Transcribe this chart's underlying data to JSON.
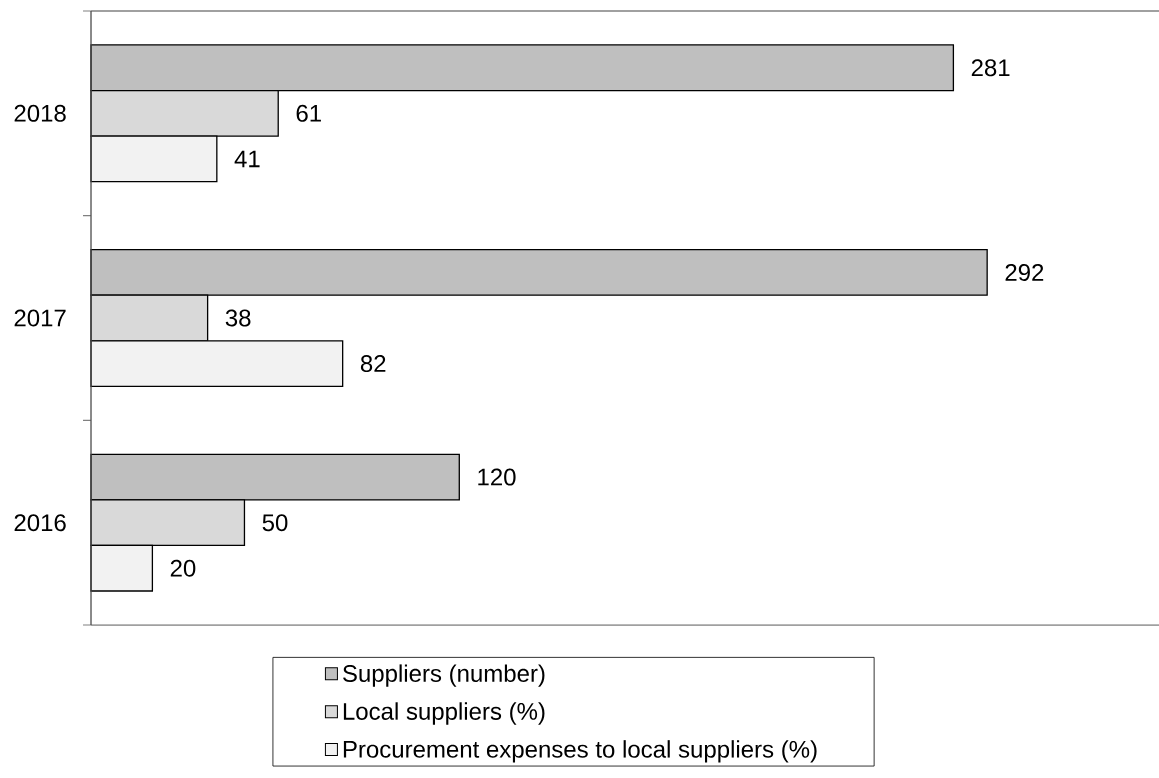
{
  "chart_data": {
    "type": "bar",
    "orientation": "horizontal",
    "categories": [
      "2018",
      "2017",
      "2016"
    ],
    "series": [
      {
        "name": "Suppliers (number)",
        "color": "#bfbfbf",
        "values": [
          281,
          292,
          120
        ]
      },
      {
        "name": "Local suppliers (%)",
        "color": "#d9d9d9",
        "values": [
          61,
          38,
          50
        ]
      },
      {
        "name": "Procurement expenses to local suppliers (%)",
        "color": "#f2f2f2",
        "values": [
          41,
          82,
          20
        ]
      }
    ],
    "xlim": [
      0,
      348
    ],
    "data_labels": true,
    "legend": "bottom",
    "tick_labels": "y"
  }
}
